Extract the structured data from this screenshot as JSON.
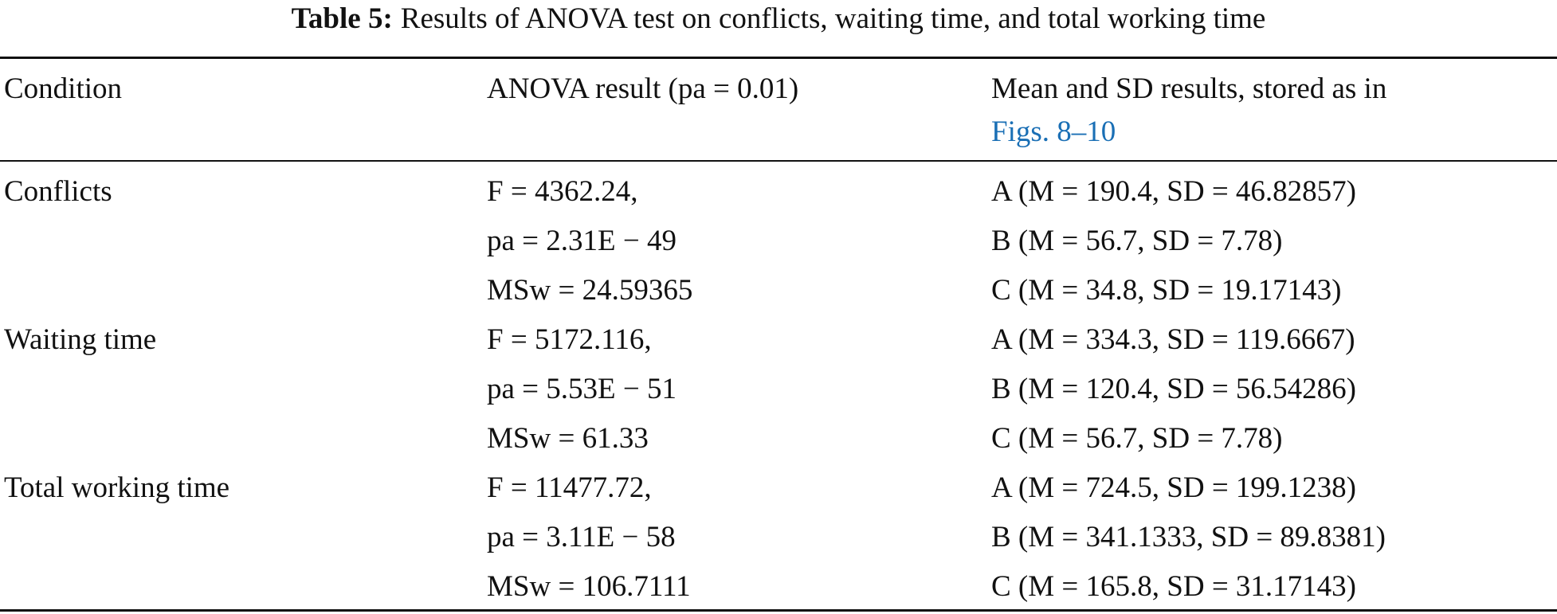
{
  "table": {
    "caption": {
      "label": "Table 5:",
      "text": "Results of ANOVA test on conflicts, waiting time, and total working time"
    },
    "header": {
      "condition": "Condition",
      "anova": "ANOVA result (pa = 0.01)",
      "means": "Mean and SD results, stored as in",
      "means_link": "Figs. 8–10"
    },
    "rows": [
      {
        "condition": "Conflicts",
        "anova": [
          "F = 4362.24,",
          "pa = 2.31E − 49",
          "MSw = 24.59365"
        ],
        "means": [
          "A (M = 190.4, SD = 46.82857)",
          "B (M = 56.7, SD = 7.78)",
          "C (M = 34.8, SD = 19.17143)"
        ]
      },
      {
        "condition": "Waiting time",
        "anova": [
          "F = 5172.116,",
          "pa = 5.53E − 51",
          "MSw = 61.33"
        ],
        "means": [
          "A (M = 334.3, SD = 119.6667)",
          "B (M = 120.4, SD = 56.54286)",
          "C (M = 56.7, SD = 7.78)"
        ]
      },
      {
        "condition": "Total working time",
        "anova": [
          "F = 11477.72,",
          "pa = 3.11E − 58",
          "MSw = 106.7111"
        ],
        "means": [
          "A (M = 724.5, SD = 199.1238)",
          "B (M = 341.1333, SD = 89.8381)",
          "C (M = 165.8, SD = 31.17143)"
        ]
      }
    ]
  }
}
